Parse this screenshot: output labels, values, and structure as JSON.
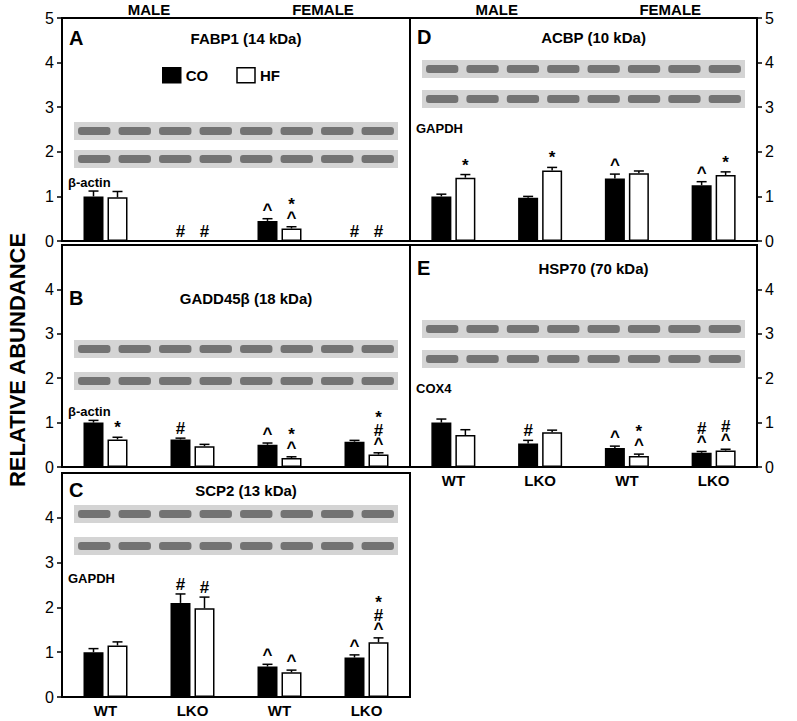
{
  "figure": {
    "ylabel": "RELATIVE ABUNDANCE",
    "column_headers": [
      "MALE",
      "FEMALE"
    ]
  },
  "chart_data": [
    {
      "type": "bar",
      "panel": "A",
      "title": "FABP1 (14 kDa)",
      "loading_control": "β-actin",
      "categories": [
        "WT",
        "LKO",
        "WT",
        "LKO"
      ],
      "series": [
        {
          "name": "CO",
          "color": "#000000",
          "values": [
            1.0,
            0,
            0.45,
            0
          ],
          "errors": [
            0.12,
            null,
            0.05,
            null
          ],
          "annotations": [
            [],
            [
              "#"
            ],
            [
              "^"
            ],
            [
              "#"
            ]
          ]
        },
        {
          "name": "HF",
          "color": "#ffffff",
          "values": [
            0.98,
            0,
            0.28,
            0
          ],
          "errors": [
            0.13,
            null,
            0.04,
            null
          ],
          "annotations": [
            [],
            [
              "#"
            ],
            [
              "*",
              "^"
            ],
            [
              "#"
            ]
          ]
        }
      ],
      "ylim": [
        0,
        5
      ],
      "yticks": [
        0,
        1,
        2,
        3,
        4,
        5
      ],
      "grid": false,
      "legend": "top",
      "tick_labels": "y"
    },
    {
      "type": "bar",
      "panel": "B",
      "title": "GADD45β (18 kDa)",
      "loading_control": "β-actin",
      "categories": [
        "WT",
        "LKO",
        "WT",
        "LKO"
      ],
      "series": [
        {
          "name": "CO",
          "color": "#000000",
          "values": [
            1.0,
            0.62,
            0.5,
            0.57
          ],
          "errors": [
            0.05,
            0.03,
            0.04,
            0.03
          ],
          "annotations": [
            [],
            [
              "#"
            ],
            [
              "^"
            ],
            []
          ]
        },
        {
          "name": "HF",
          "color": "#ffffff",
          "values": [
            0.62,
            0.47,
            0.2,
            0.28
          ],
          "errors": [
            0.05,
            0.04,
            0.03,
            0.04
          ],
          "annotations": [
            [
              "*"
            ],
            [],
            [
              "*",
              "^"
            ],
            [
              "*",
              "#",
              "^"
            ]
          ]
        }
      ],
      "ylim": [
        0,
        5
      ],
      "yticks": [
        0,
        1,
        2,
        3,
        4
      ],
      "grid": false,
      "tick_labels": "y"
    },
    {
      "type": "bar",
      "panel": "C",
      "title": "SCP2 (13 kDa)",
      "loading_control": "GAPDH",
      "categories": [
        "WT",
        "LKO",
        "WT",
        "LKO"
      ],
      "series": [
        {
          "name": "CO",
          "color": "#000000",
          "values": [
            1.0,
            2.1,
            0.68,
            0.88
          ],
          "errors": [
            0.08,
            0.2,
            0.05,
            0.06
          ],
          "annotations": [
            [],
            [
              "#"
            ],
            [
              "^"
            ],
            [
              "^"
            ]
          ]
        },
        {
          "name": "HF",
          "color": "#ffffff",
          "values": [
            1.15,
            1.98,
            0.55,
            1.22
          ],
          "errors": [
            0.08,
            0.25,
            0.05,
            0.1
          ],
          "annotations": [
            [],
            [
              "#"
            ],
            [
              "^"
            ],
            [
              "*",
              "#",
              "^"
            ]
          ]
        }
      ],
      "ylim": [
        0,
        5
      ],
      "yticks": [
        0,
        1,
        2,
        3,
        4
      ],
      "grid": false
    },
    {
      "type": "bar",
      "panel": "D",
      "title": "ACBP (10 kDa)",
      "loading_control": "GAPDH",
      "categories": [
        "WT",
        "LKO",
        "WT",
        "LKO"
      ],
      "series": [
        {
          "name": "CO",
          "color": "#000000",
          "values": [
            1.0,
            0.97,
            1.4,
            1.25
          ],
          "errors": [
            0.05,
            0.03,
            0.1,
            0.08
          ],
          "annotations": [
            [],
            [],
            [
              "^"
            ],
            [
              "^"
            ]
          ]
        },
        {
          "name": "HF",
          "color": "#ffffff",
          "values": [
            1.42,
            1.58,
            1.52,
            1.48
          ],
          "errors": [
            0.07,
            0.07,
            0.05,
            0.07
          ],
          "annotations": [
            [
              "*"
            ],
            [
              "*"
            ],
            [],
            [
              "*"
            ]
          ]
        }
      ],
      "ylim": [
        0,
        5
      ],
      "yticks": [
        0,
        1,
        2,
        3,
        4,
        5
      ],
      "grid": false,
      "tick_labels": "y"
    },
    {
      "type": "bar",
      "panel": "E",
      "title": "HSP70 (70 kDa)",
      "loading_control": "COX4",
      "categories": [
        "WT",
        "LKO",
        "WT",
        "LKO"
      ],
      "series": [
        {
          "name": "CO",
          "color": "#000000",
          "values": [
            1.0,
            0.53,
            0.43,
            0.32
          ],
          "errors": [
            0.08,
            0.07,
            0.04,
            0.03
          ],
          "annotations": [
            [],
            [
              "#"
            ],
            [
              "^"
            ],
            [
              "#",
              "^"
            ]
          ]
        },
        {
          "name": "HF",
          "color": "#ffffff",
          "values": [
            0.72,
            0.78,
            0.25,
            0.37
          ],
          "errors": [
            0.12,
            0.05,
            0.04,
            0.03
          ],
          "annotations": [
            [],
            [],
            [
              "*",
              "^"
            ],
            [
              "#",
              "^"
            ]
          ]
        }
      ],
      "ylim": [
        0,
        5
      ],
      "yticks": [
        0,
        1,
        2,
        3,
        4
      ],
      "grid": false
    }
  ]
}
